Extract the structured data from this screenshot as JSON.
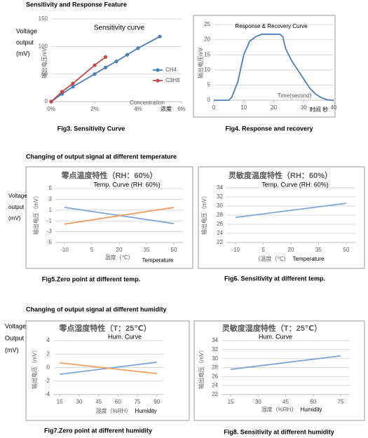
{
  "headings": [
    "Sensitivity and Response Feature",
    "Changing of output signal at different temperature",
    "Changing of output signal at different humidity"
  ],
  "chart_data": [
    {
      "type": "line",
      "title": "Sensitivity curve",
      "side_label": [
        "Voltage",
        "output",
        "(mV)"
      ],
      "ylabel": "输出电压mV",
      "xlabel": [
        "Concentration",
        "浓度"
      ],
      "caption": "Fig3. Sensitivity Curve",
      "xlim": [
        0,
        6
      ],
      "ylim": [
        0,
        150
      ],
      "xticks": [
        {
          "value": 0,
          "label": "0%"
        },
        {
          "value": 2,
          "label": "2%"
        },
        {
          "value": 4,
          "label": "4%"
        },
        {
          "value": 6,
          "label": "6%"
        }
      ],
      "yticks": [
        0,
        50,
        100,
        150
      ],
      "grid": true,
      "legend": "right",
      "series": [
        {
          "name": "CH4",
          "color": "#4a7ebb",
          "marker": "circle",
          "x": [
            0,
            0.5,
            1,
            2,
            2.5,
            3,
            3.5,
            4,
            5
          ],
          "values": [
            0,
            14,
            27,
            50,
            62,
            73,
            85,
            97,
            118
          ]
        },
        {
          "name": "C3H8",
          "color": "#be4b48",
          "marker": "circle",
          "x": [
            0,
            0.5,
            1,
            2,
            2.5
          ],
          "values": [
            0,
            18,
            33,
            66,
            81
          ]
        }
      ]
    },
    {
      "type": "line",
      "title": "Response & Recovery Curve",
      "ylabel": "输出电压mV",
      "xlabel": [
        "Time(second)",
        "时间 秒"
      ],
      "caption": "Fig4.  Response  and  recovery",
      "xlim": [
        0,
        40
      ],
      "ylim": [
        0,
        25
      ],
      "xticks": [
        0,
        10,
        20,
        30,
        40
      ],
      "yticks": [
        0,
        5,
        10,
        15,
        20,
        25
      ],
      "grid": true,
      "series": [
        {
          "color": "#4a7ebb",
          "x": [
            0,
            5,
            6,
            8,
            10,
            12,
            14,
            16,
            18,
            20,
            22,
            23,
            24,
            26,
            28,
            30,
            32,
            34,
            36,
            38,
            40
          ],
          "values": [
            0,
            0,
            1,
            6,
            15,
            19.5,
            21,
            21.8,
            21.8,
            21.8,
            21.8,
            21,
            17,
            13,
            10,
            7,
            4,
            2,
            0.8,
            0.1,
            0
          ]
        }
      ]
    },
    {
      "type": "line",
      "title": "零点温度特性（RH：60%）",
      "subtitle": "Temp. Curve (RH: 60%)",
      "side_label": [
        "Voltage",
        "output",
        "(mV)"
      ],
      "ylabel": "输出电压（mV）",
      "xlabel": [
        "温度（℃）",
        "Temperature"
      ],
      "caption": "Fig5.Zero point at different temp.",
      "xlim": [
        -15,
        55
      ],
      "ylim": [
        -5,
        5
      ],
      "xticks": [
        -10,
        5,
        20,
        35,
        50
      ],
      "yticks": [
        -5,
        -3,
        -1,
        1,
        3,
        5
      ],
      "grid": true,
      "series": [
        {
          "color": "#7ea6d8",
          "x": [
            -10,
            50
          ],
          "values": [
            1.5,
            -1.5
          ]
        },
        {
          "color": "#f0a060",
          "x": [
            -10,
            50
          ],
          "values": [
            -1.6,
            1.5
          ]
        }
      ]
    },
    {
      "type": "line",
      "title": "灵敏度温度特性（RH：60%）",
      "subtitle": "Temp. Curve (RH: 60%)",
      "ylabel": "输出电压（mV）",
      "xlabel": [
        "（温度（℃）",
        "Temperature"
      ],
      "caption": "Fig6. Sensitivity at different temp.",
      "xlim": [
        -15,
        55
      ],
      "ylim": [
        22,
        34
      ],
      "xticks": [
        -10,
        5,
        20,
        35,
        50
      ],
      "yticks": [
        22,
        24,
        26,
        28,
        30,
        32,
        34
      ],
      "grid": true,
      "series": [
        {
          "color": "#7ea6d8",
          "x": [
            -10,
            50
          ],
          "values": [
            27.5,
            30.6
          ]
        }
      ]
    },
    {
      "type": "line",
      "title": "零点湿度特性（T：25℃）",
      "subtitle": "Hum. Curve",
      "side_label": [
        "Voltage",
        "Output",
        "(mV)"
      ],
      "ylabel": "输出电压（mV）",
      "xlabel": [
        "湿度（%RH）",
        "Humidity"
      ],
      "caption": "Fig7.Zero point at different humidity",
      "xlim": [
        10,
        95
      ],
      "ylim": [
        -4,
        4
      ],
      "xticks": [
        15,
        30,
        45,
        60,
        75,
        90
      ],
      "yticks": [
        -4,
        -2,
        0,
        2,
        4
      ],
      "grid": true,
      "series": [
        {
          "color": "#7ea6d8",
          "x": [
            15,
            90
          ],
          "values": [
            -1,
            0.8
          ]
        },
        {
          "color": "#f0a060",
          "x": [
            15,
            90
          ],
          "values": [
            0.7,
            -0.9
          ]
        }
      ]
    },
    {
      "type": "line",
      "title": "灵敏度湿度特性（T：25℃）",
      "subtitle": "Hum. Curve",
      "ylabel": "输出电压（mV）",
      "xlabel": [
        "湿度（%RH）",
        "Humidity"
      ],
      "caption": "Fig8. Sensitivity at different humidity",
      "xlim": [
        10,
        80
      ],
      "ylim": [
        22,
        34
      ],
      "xticks": [
        15,
        30,
        45,
        60,
        75
      ],
      "yticks": [
        22,
        24,
        26,
        28,
        30,
        32,
        34
      ],
      "grid": true,
      "series": [
        {
          "color": "#7ea6d8",
          "x": [
            15,
            75
          ],
          "values": [
            27.6,
            30.6
          ]
        }
      ]
    }
  ]
}
